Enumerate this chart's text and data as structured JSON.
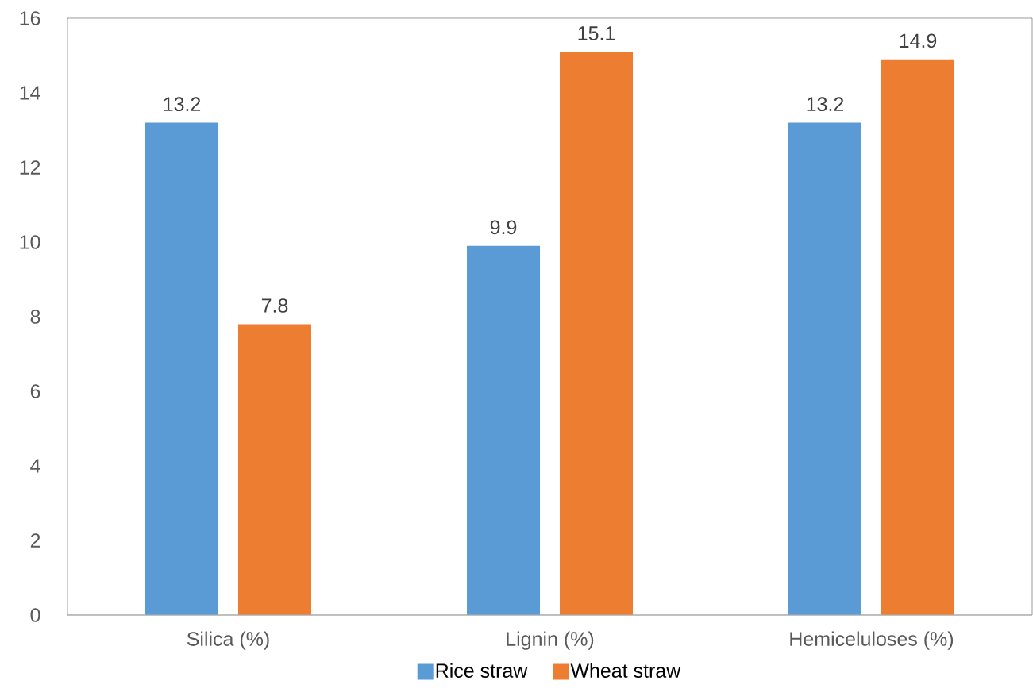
{
  "chart_data": {
    "type": "bar",
    "categories": [
      "Silica (%)",
      "Lignin (%)",
      "Hemiceluloses (%)"
    ],
    "series": [
      {
        "name": "Rice straw",
        "color": "#5b9bd5",
        "values": [
          13.2,
          9.9,
          13.2
        ]
      },
      {
        "name": "Wheat straw",
        "color": "#ed7d31",
        "values": [
          7.8,
          15.1,
          14.9
        ]
      }
    ],
    "ylim": [
      0,
      16
    ],
    "yticks": [
      0,
      2,
      4,
      6,
      8,
      10,
      12,
      14,
      16
    ],
    "data_labels": true,
    "legend": "bottom",
    "grid": false
  }
}
